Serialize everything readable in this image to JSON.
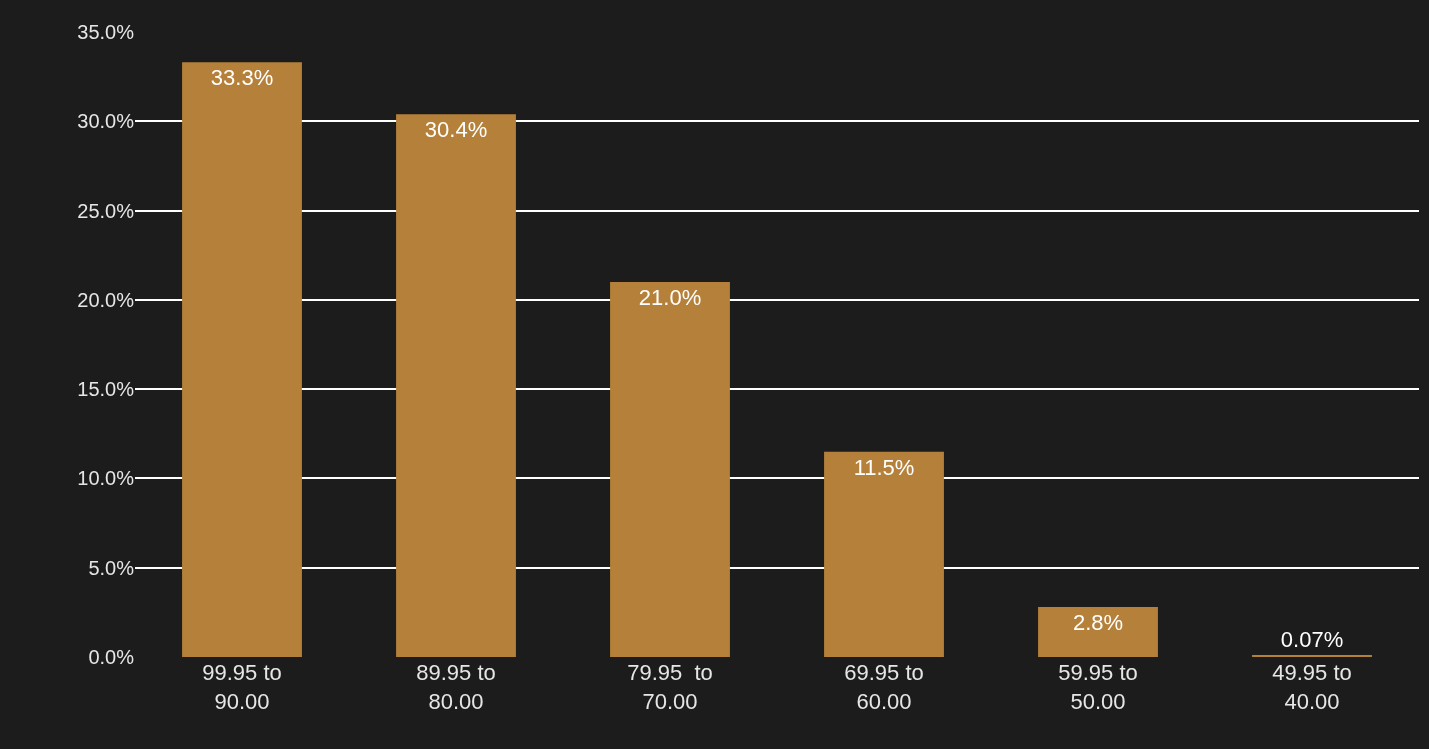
{
  "chart_data": {
    "type": "bar",
    "categories": [
      "99.95 to\n90.00",
      "89.95 to\n80.00",
      "79.95  to\n70.00",
      "69.95 to\n60.00",
      "59.95 to\n50.00",
      "49.95 to\n40.00"
    ],
    "values": [
      33.3,
      30.4,
      21.0,
      11.5,
      2.8,
      0.07
    ],
    "value_labels": [
      "33.3%",
      "30.4%",
      "21.0%",
      "11.5%",
      "2.8%",
      "0.07%"
    ],
    "color": "#b5813a",
    "ylim": [
      0,
      35
    ],
    "yticks": [
      {
        "value": 0,
        "label": "0.0%"
      },
      {
        "value": 5,
        "label": "5.0%"
      },
      {
        "value": 10,
        "label": "10.0%"
      },
      {
        "value": 15,
        "label": "15.0%"
      },
      {
        "value": 20,
        "label": "20.0%"
      },
      {
        "value": 25,
        "label": "25.0%"
      },
      {
        "value": 30,
        "label": "30.0%"
      },
      {
        "value": 35,
        "label": "35.0%"
      }
    ],
    "grid": "y",
    "legend": false
  }
}
